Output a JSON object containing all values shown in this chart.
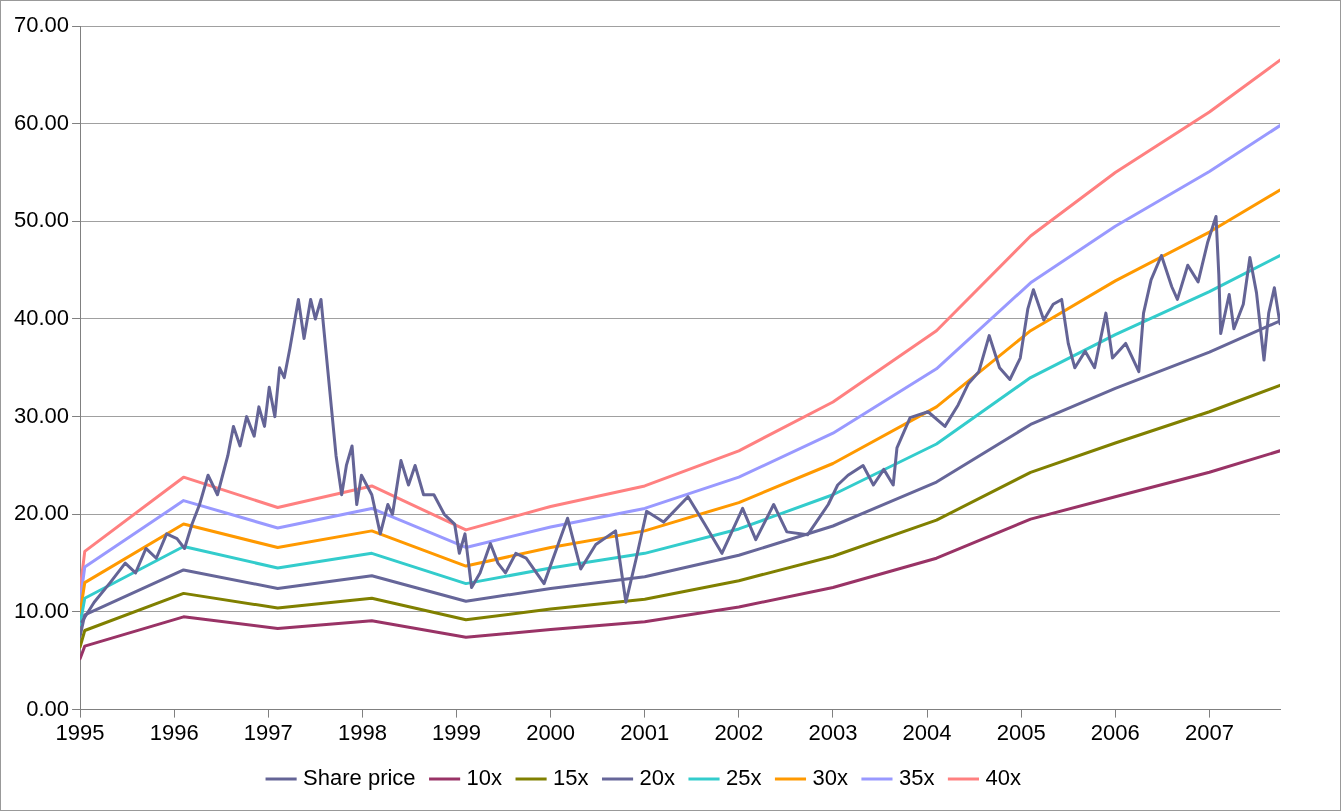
{
  "chart_data": {
    "type": "line",
    "grid": "y",
    "legend": "bottom",
    "marker": "none",
    "line_style": "solid",
    "xlim": [
      1995,
      2007.75
    ],
    "xticks": [
      1995,
      1996,
      1997,
      1998,
      1999,
      2000,
      2001,
      2002,
      2003,
      2004,
      2005,
      2006,
      2007
    ],
    "ylim": [
      0,
      70
    ],
    "yticks": [
      {
        "value": 0,
        "label": "0.00"
      },
      {
        "value": 10,
        "label": "10.00"
      },
      {
        "value": 20,
        "label": "20.00"
      },
      {
        "value": 30,
        "label": "30.00"
      },
      {
        "value": 40,
        "label": "40.00"
      },
      {
        "value": 50,
        "label": "50.00"
      },
      {
        "value": 60,
        "label": "60.00"
      },
      {
        "value": 70,
        "label": "70.00"
      }
    ],
    "x": [
      1995,
      1995.05,
      1996.1,
      1997.1,
      1998.1,
      1999.1,
      2000,
      2001,
      2002,
      2003,
      2004.1,
      2005.1,
      2006,
      2007,
      2007.75
    ],
    "series": [
      {
        "name": "Share price",
        "color": "#646496",
        "x": [
          1995.02,
          1995.15,
          1995.32,
          1995.48,
          1995.59,
          1995.7,
          1995.81,
          1995.92,
          1996.03,
          1996.11,
          1996.19,
          1996.27,
          1996.36,
          1996.46,
          1996.57,
          1996.63,
          1996.7,
          1996.77,
          1996.85,
          1996.9,
          1996.96,
          1997.01,
          1997.07,
          1997.12,
          1997.17,
          1997.23,
          1997.32,
          1997.38,
          1997.45,
          1997.5,
          1997.56,
          1997.61,
          1997.67,
          1997.72,
          1997.78,
          1997.83,
          1997.89,
          1997.94,
          1997.99,
          1998.1,
          1998.19,
          1998.27,
          1998.32,
          1998.41,
          1998.49,
          1998.56,
          1998.65,
          1998.76,
          1998.87,
          1998.98,
          1999.03,
          1999.09,
          1999.16,
          1999.25,
          1999.36,
          1999.44,
          1999.52,
          1999.63,
          1999.74,
          1999.93,
          2000.18,
          2000.32,
          2000.48,
          2000.69,
          2000.8,
          2000.91,
          2001.02,
          2001.2,
          2001.46,
          2001.63,
          2001.82,
          2002.04,
          2002.18,
          2002.37,
          2002.51,
          2002.73,
          2002.95,
          2003.05,
          2003.16,
          2003.32,
          2003.43,
          2003.54,
          2003.64,
          2003.68,
          2003.82,
          2004.01,
          2004.19,
          2004.33,
          2004.44,
          2004.55,
          2004.66,
          2004.77,
          2004.88,
          2004.99,
          2005.07,
          2005.13,
          2005.24,
          2005.34,
          2005.43,
          2005.5,
          2005.57,
          2005.68,
          2005.78,
          2005.9,
          2005.97,
          2006.11,
          2006.25,
          2006.3,
          2006.38,
          2006.49,
          2006.6,
          2006.66,
          2006.77,
          2006.88,
          2006.98,
          2007.07,
          2007.1,
          2007.12,
          2007.21,
          2007.26,
          2007.36,
          2007.43,
          2007.5,
          2007.58,
          2007.63,
          2007.69,
          2007.75
        ],
        "values": [
          9,
          11,
          13,
          15,
          14,
          16.5,
          15.5,
          18,
          17.5,
          16.5,
          19,
          21,
          24,
          22,
          26,
          29,
          27,
          30,
          28,
          31,
          29,
          33,
          30,
          35,
          34,
          37,
          42,
          38,
          42,
          40,
          42,
          37,
          31,
          26,
          22,
          25,
          27,
          21,
          24,
          22,
          18,
          21,
          20,
          25.5,
          23,
          25,
          22,
          22,
          20,
          19,
          16,
          18,
          12.5,
          14,
          17,
          15,
          14,
          16,
          15.5,
          12.9,
          19.6,
          14.4,
          16.9,
          18.3,
          11,
          15.5,
          20.3,
          19.2,
          21.8,
          19.1,
          16,
          20.6,
          17.4,
          21,
          18.2,
          17.9,
          21,
          23,
          24,
          25,
          23,
          24.6,
          23,
          26.8,
          29.9,
          30.5,
          29,
          31.2,
          33.4,
          34.6,
          38.3,
          35,
          33.8,
          36,
          41,
          43,
          39.9,
          41.5,
          42,
          37.5,
          35,
          36.7,
          35,
          40.6,
          36,
          37.5,
          34.6,
          40.6,
          44,
          46.5,
          43.3,
          42,
          45.5,
          43.8,
          47.8,
          50.5,
          44.5,
          38.5,
          42.5,
          39,
          41.5,
          46.3,
          42.7,
          35.8,
          40.6,
          43.2,
          39.5
        ]
      },
      {
        "name": "10x",
        "color": "#993366",
        "values": [
          5.2,
          6.5,
          9.5,
          8.3,
          9.1,
          7.4,
          8.2,
          9,
          10.5,
          12.5,
          15.5,
          19.5,
          21.8,
          24.3,
          26.5
        ]
      },
      {
        "name": "15x",
        "color": "#808000",
        "values": [
          6.4,
          8.1,
          11.9,
          10.4,
          11.4,
          9.2,
          10.3,
          11.3,
          13.2,
          15.7,
          19.4,
          24.3,
          27.3,
          30.5,
          33.2
        ]
      },
      {
        "name": "20x",
        "color": "#666699",
        "values": [
          7.5,
          9.7,
          14.3,
          12.4,
          13.7,
          11.1,
          12.4,
          13.6,
          15.8,
          18.8,
          23.3,
          29.2,
          32.9,
          36.6,
          39.8
        ]
      },
      {
        "name": "25x",
        "color": "#33cccc",
        "values": [
          8.7,
          11.4,
          16.7,
          14.5,
          16,
          12.9,
          14.5,
          16,
          18.5,
          22,
          27.2,
          34,
          38.4,
          42.8,
          46.5
        ]
      },
      {
        "name": "30x",
        "color": "#ff9900",
        "values": [
          9.9,
          13,
          19,
          16.6,
          18.3,
          14.7,
          16.6,
          18.3,
          21.2,
          25.2,
          31,
          38.8,
          43.9,
          48.9,
          53.2
        ]
      },
      {
        "name": "35x",
        "color": "#9999ff",
        "values": [
          11,
          14.6,
          21.4,
          18.6,
          20.6,
          16.6,
          18.7,
          20.6,
          23.8,
          28.3,
          34.9,
          43.7,
          49.5,
          55.1,
          59.8
        ]
      },
      {
        "name": "40x",
        "color": "#ff8080",
        "values": [
          12.2,
          16.2,
          23.8,
          20.7,
          22.9,
          18.4,
          20.8,
          22.9,
          26.5,
          31.5,
          38.8,
          48.5,
          55,
          61.2,
          66.5
        ]
      }
    ]
  }
}
